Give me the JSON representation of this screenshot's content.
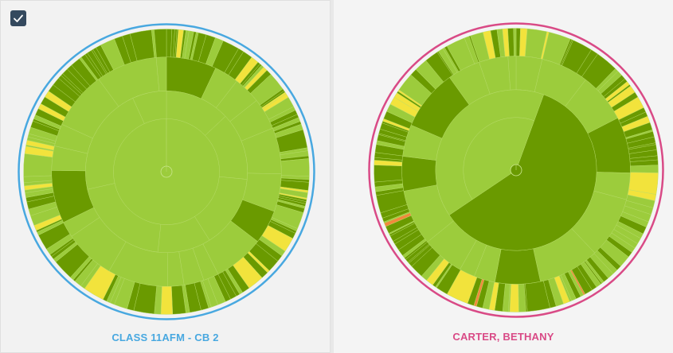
{
  "toolbar": {
    "select_all_checked": true,
    "check_icon": "check-icon"
  },
  "colors": {
    "left_ring": "#48a8e0",
    "right_ring": "#d94a86",
    "light_green": "#9ccc3c",
    "dark_green": "#6a9a00",
    "yellow": "#f2e33c",
    "orange": "#f08a3c",
    "red": "#e05040"
  },
  "panels": [
    {
      "label": "CLASS 11AFM - CB 2",
      "label_color": "#48a8e0",
      "chart_data": {
        "type": "sunburst",
        "rings": 4,
        "ring_color": "#48a8e0",
        "center_dark_fraction": 0
      }
    },
    {
      "label": "CARTER, BETHANY",
      "label_color": "#d94a86",
      "chart_data": {
        "type": "sunburst",
        "rings": 4,
        "ring_color": "#d94a86",
        "center_dark_fraction": 0.6
      }
    }
  ]
}
